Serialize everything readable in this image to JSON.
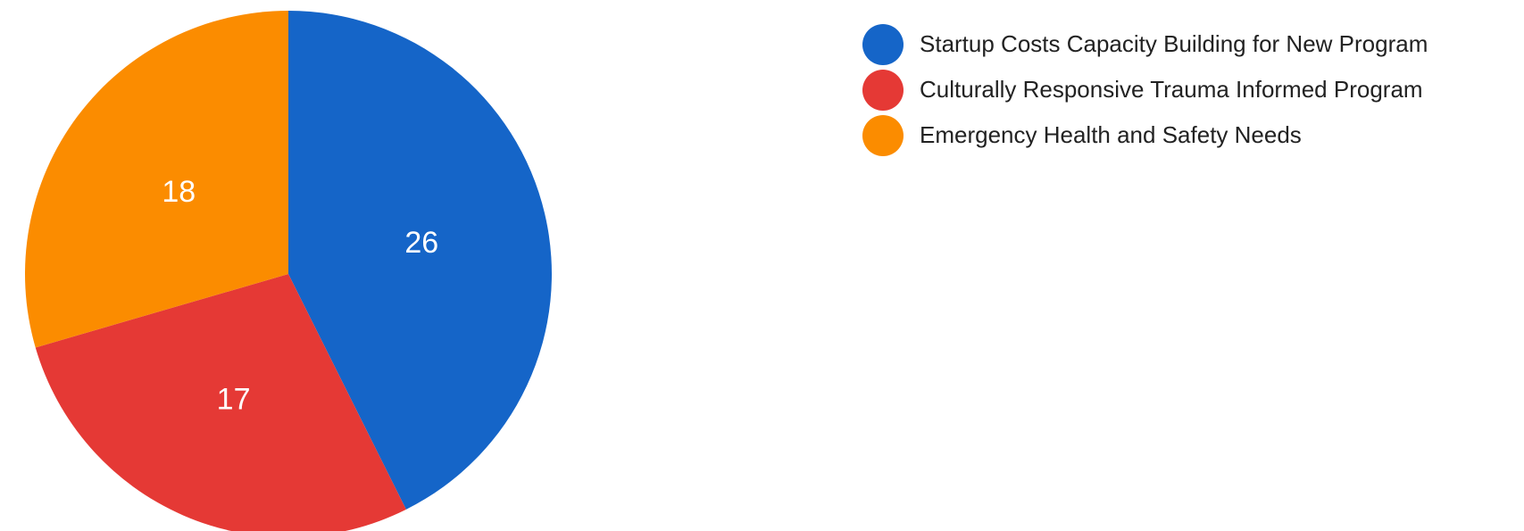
{
  "chart_data": {
    "type": "pie",
    "slices": [
      {
        "name": "Startup Costs Capacity Building for New Program",
        "value": 26,
        "color": "#1565C8"
      },
      {
        "name": "Culturally Responsive Trauma Informed Program",
        "value": 17,
        "color": "#E53935"
      },
      {
        "name": "Emergency Health and Safety Needs",
        "value": 18,
        "color": "#FB8C00"
      }
    ],
    "legend_position": "top-right",
    "data_labels": true
  }
}
